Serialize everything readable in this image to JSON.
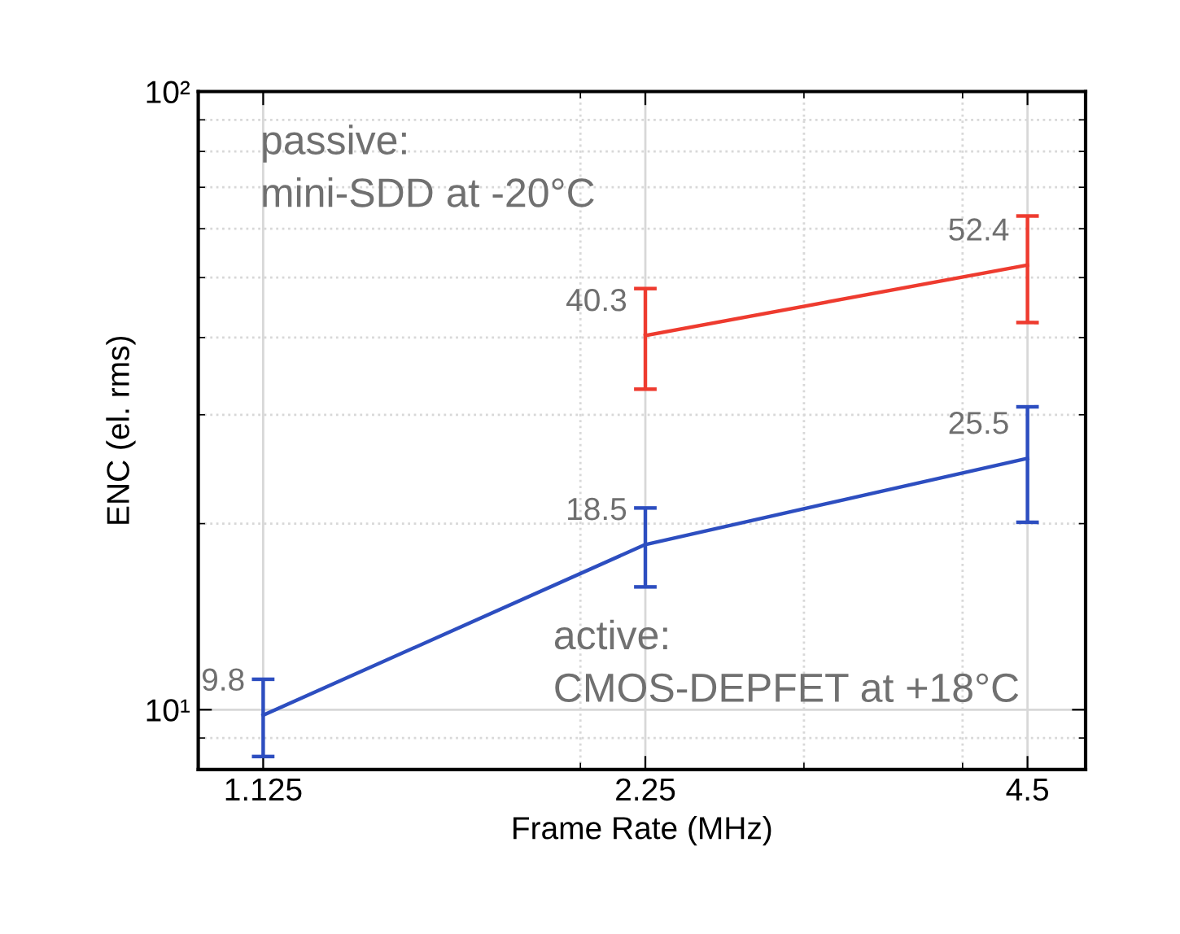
{
  "chart_data": {
    "type": "line",
    "xlabel": "Frame Rate (MHz)",
    "ylabel": "ENC (el. rms)",
    "log": "xy",
    "x": [
      1.125,
      2.25,
      4.5
    ],
    "xlim": [
      1,
      5
    ],
    "xticks": [
      1.125,
      2.25,
      4.5
    ],
    "ylim": [
      8,
      100
    ],
    "yticks": [
      {
        "value": 10,
        "label": "10¹"
      },
      {
        "value": 100,
        "label": "10²"
      }
    ],
    "annotations": [
      "passive:\nmini-SDD at -20°C",
      "active:\nCMOS-DEPFET at +18°C"
    ],
    "grid": true,
    "legend": false,
    "marker": "none",
    "line_style": "solid",
    "data_labels": true,
    "series": [
      {
        "color": "#ee3b2f",
        "x": [
          2.25,
          4.5
        ],
        "values": [
          40.3,
          52.4
        ],
        "errors": [
          [
            33.0,
            48.0
          ],
          [
            42.3,
            62.9
          ]
        ]
      },
      {
        "color": "#2d4ec0",
        "values": [
          9.8,
          18.5,
          25.5
        ],
        "errors": [
          [
            8.4,
            11.2
          ],
          [
            15.8,
            21.2
          ],
          [
            20.1,
            30.9
          ]
        ]
      }
    ]
  }
}
